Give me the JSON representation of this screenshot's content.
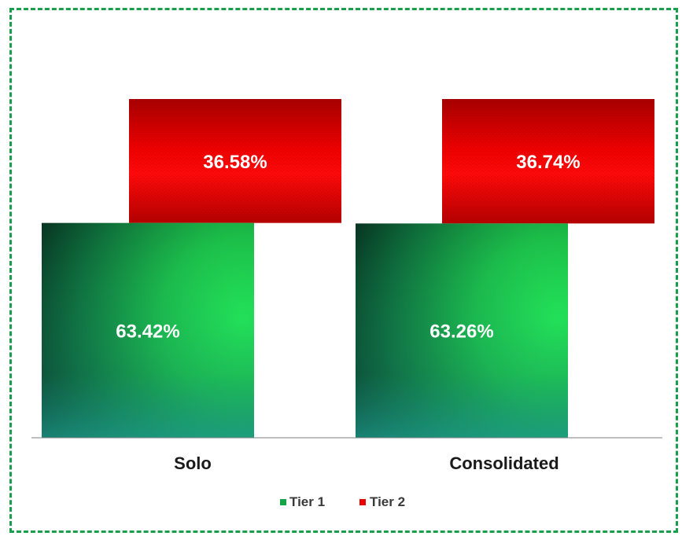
{
  "chart_data": {
    "type": "bar",
    "stacked": true,
    "categories": [
      "Solo",
      "Consolidated"
    ],
    "series": [
      {
        "name": "Tier 1",
        "values": [
          63.42,
          63.26
        ],
        "labels": [
          "63.42%",
          "63.26%"
        ],
        "color": "#1fd14a"
      },
      {
        "name": "Tier 2",
        "values": [
          36.58,
          36.74
        ],
        "labels": [
          "36.58%",
          "36.74%"
        ],
        "color": "#e60000"
      }
    ],
    "ylim": [
      0,
      100
    ],
    "unit": "%",
    "legend_position": "bottom-center",
    "grid": false,
    "frame_color": "#1b9e4b"
  }
}
